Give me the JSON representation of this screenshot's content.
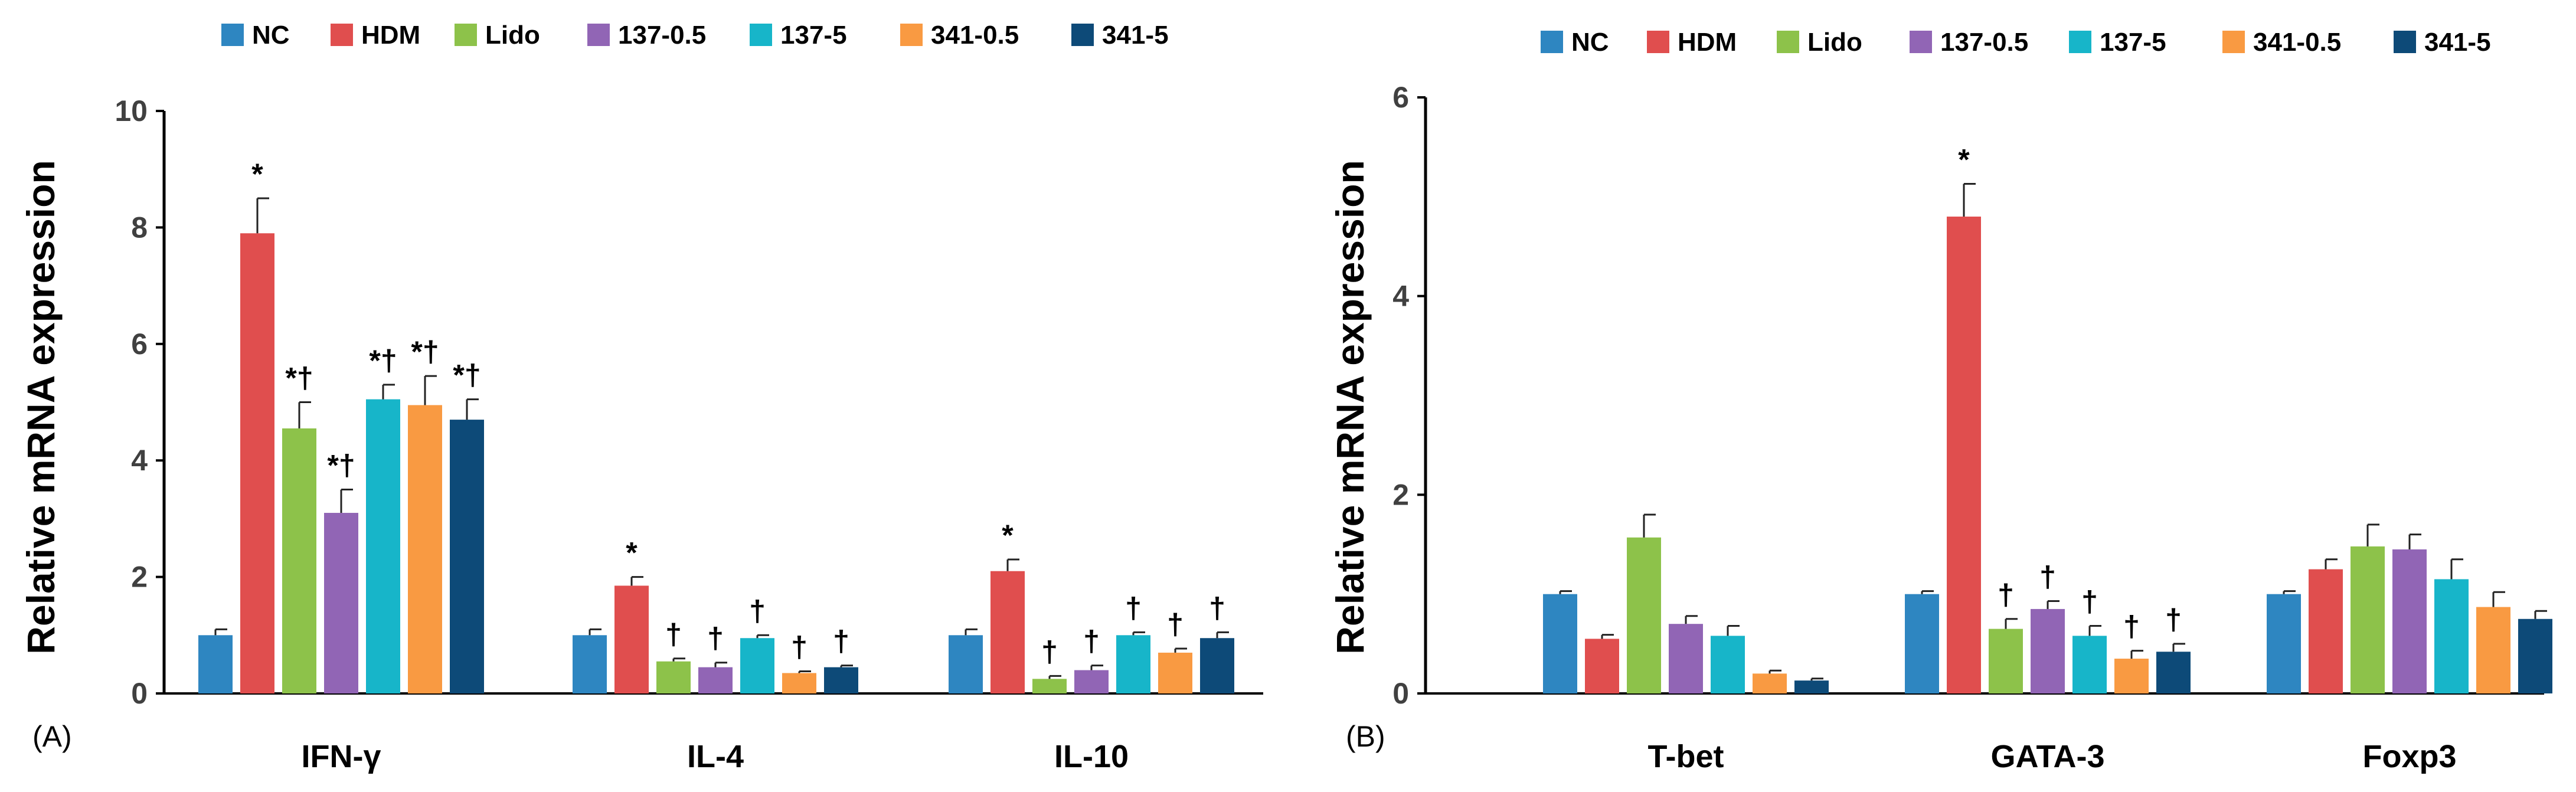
{
  "legend": [
    {
      "name": "NC",
      "color": "#2E86C1"
    },
    {
      "name": "HDM",
      "color": "#E04E4E"
    },
    {
      "name": "Lido",
      "color": "#8DC24A"
    },
    {
      "name": "137-0.5",
      "color": "#9165B5"
    },
    {
      "name": "137-5",
      "color": "#17B5C9"
    },
    {
      "name": "341-0.5",
      "color": "#F99A42"
    },
    {
      "name": "341-5",
      "color": "#0D4A78"
    }
  ],
  "chart_data": [
    {
      "type": "bar",
      "panel_label": "(A)",
      "ylabel": "Relative mRNA expression",
      "ylim": [
        0,
        10
      ],
      "yticks": [
        "0",
        "2",
        "4",
        "6",
        "8",
        "10"
      ],
      "categories": [
        "IFN-γ",
        "IL-4",
        "IL-10"
      ],
      "series": [
        {
          "name": "NC",
          "values": [
            1.0,
            1.0,
            1.0
          ],
          "errors": [
            0.1,
            0.1,
            0.1
          ],
          "marks": [
            "",
            "",
            ""
          ]
        },
        {
          "name": "HDM",
          "values": [
            7.9,
            1.85,
            2.1
          ],
          "errors": [
            0.6,
            0.15,
            0.2
          ],
          "marks": [
            "*",
            "*",
            "*"
          ]
        },
        {
          "name": "Lido",
          "values": [
            4.55,
            0.55,
            0.25
          ],
          "errors": [
            0.45,
            0.05,
            0.05
          ],
          "marks": [
            "*†",
            "†",
            "†"
          ]
        },
        {
          "name": "137-0.5",
          "values": [
            3.1,
            0.45,
            0.4
          ],
          "errors": [
            0.4,
            0.08,
            0.08
          ],
          "marks": [
            "*†",
            "†",
            "†"
          ]
        },
        {
          "name": "137-5",
          "values": [
            5.05,
            0.95,
            1.0
          ],
          "errors": [
            0.25,
            0.05,
            0.05
          ],
          "marks": [
            "*†",
            "†",
            "†"
          ]
        },
        {
          "name": "341-0.5",
          "values": [
            4.95,
            0.35,
            0.7
          ],
          "errors": [
            0.5,
            0.03,
            0.07
          ],
          "marks": [
            "*†",
            "†",
            "†"
          ]
        },
        {
          "name": "341-5",
          "values": [
            4.7,
            0.45,
            0.95
          ],
          "errors": [
            0.35,
            0.03,
            0.1
          ],
          "marks": [
            "*†",
            "†",
            "†"
          ]
        }
      ]
    },
    {
      "type": "bar",
      "panel_label": "(B)",
      "ylabel": "Relative mRNA expression",
      "ylim": [
        0,
        6
      ],
      "yticks": [
        "0",
        "2",
        "4",
        "6"
      ],
      "categories": [
        "T-bet",
        "GATA-3",
        "Foxp3"
      ],
      "series": [
        {
          "name": "NC",
          "values": [
            1.0,
            1.0,
            1.0
          ],
          "errors": [
            0.03,
            0.03,
            0.03
          ],
          "marks": [
            "",
            "",
            ""
          ]
        },
        {
          "name": "HDM",
          "values": [
            0.55,
            4.8,
            1.25
          ],
          "errors": [
            0.04,
            0.33,
            0.1
          ],
          "marks": [
            "",
            "*",
            ""
          ]
        },
        {
          "name": "Lido",
          "values": [
            1.57,
            0.65,
            1.48
          ],
          "errors": [
            0.23,
            0.1,
            0.22
          ],
          "marks": [
            "",
            "†",
            ""
          ]
        },
        {
          "name": "137-0.5",
          "values": [
            0.7,
            0.85,
            1.45
          ],
          "errors": [
            0.08,
            0.08,
            0.15
          ],
          "marks": [
            "",
            "†",
            ""
          ]
        },
        {
          "name": "137-5",
          "values": [
            0.58,
            0.58,
            1.15
          ],
          "errors": [
            0.1,
            0.1,
            0.2
          ],
          "marks": [
            "",
            "†",
            ""
          ]
        },
        {
          "name": "341-0.5",
          "values": [
            0.2,
            0.35,
            0.87
          ],
          "errors": [
            0.03,
            0.08,
            0.15
          ],
          "marks": [
            "",
            "†",
            ""
          ]
        },
        {
          "name": "341-5",
          "values": [
            0.13,
            0.42,
            0.75
          ],
          "errors": [
            0.02,
            0.08,
            0.08
          ],
          "marks": [
            "",
            "†",
            ""
          ]
        }
      ]
    }
  ]
}
